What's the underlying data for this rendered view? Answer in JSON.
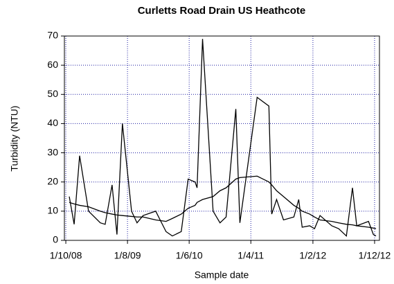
{
  "chart_data": {
    "type": "line",
    "title": "Curletts Road Drain US Heathcote",
    "xlabel": "Sample date",
    "ylabel": "Turbidity (NTU)",
    "x": [
      "2008-10-18",
      "2008-11-11",
      "2008-12-08",
      "2009-01-21",
      "2009-03-20",
      "2009-04-13",
      "2009-05-17",
      "2009-06-10",
      "2009-07-07",
      "2009-08-21",
      "2009-09-17",
      "2009-10-17",
      "2009-12-18",
      "2010-02-07",
      "2010-03-10",
      "2010-04-23",
      "2010-05-27",
      "2010-06-30",
      "2010-07-10",
      "2010-08-06",
      "2010-09-27",
      "2010-10-31",
      "2010-11-30",
      "2011-01-17",
      "2011-02-06",
      "2011-05-02",
      "2011-06-29",
      "2011-07-13",
      "2011-08-06",
      "2011-09-09",
      "2011-10-30",
      "2011-11-23",
      "2011-12-10",
      "2012-01-16",
      "2012-02-09",
      "2012-03-07",
      "2012-05-04",
      "2012-06-07",
      "2012-07-15",
      "2012-08-14",
      "2012-09-04",
      "2012-11-01",
      "2012-11-25",
      "2012-12-08"
    ],
    "series": [
      {
        "color": "#000000",
        "values": [
          15,
          5.5,
          29,
          10,
          6,
          5.5,
          19,
          2,
          40,
          10,
          6,
          8.5,
          10,
          3,
          1.5,
          3,
          21,
          20,
          18,
          69,
          10,
          6,
          8,
          45,
          6,
          49,
          46,
          9,
          14,
          7,
          8,
          14,
          4.5,
          5,
          4,
          8.5,
          5,
          4,
          1.5,
          18,
          5,
          6.5,
          2,
          1.5
        ]
      },
      {
        "color": "#000000",
        "values": [
          13,
          12.5,
          12,
          11.5,
          10,
          9.5,
          9,
          8.7,
          8.5,
          8.2,
          8,
          8,
          7,
          6.5,
          7.5,
          9,
          11,
          12,
          13,
          14,
          15,
          17,
          18,
          21,
          21.5,
          22,
          20,
          19,
          17,
          15,
          12,
          11,
          10,
          9,
          8,
          7,
          6.5,
          6,
          5.5,
          5.3,
          5,
          4.5,
          4.2,
          4
        ]
      }
    ],
    "xlim": [
      "2008-09-24",
      "2012-12-25"
    ],
    "xticks": [
      {
        "value": "2008-10-01",
        "label": "1/10/08"
      },
      {
        "value": "2009-08-01",
        "label": "1/8/09"
      },
      {
        "value": "2010-06-01",
        "label": "1/6/10"
      },
      {
        "value": "2011-04-01",
        "label": "1/4/11"
      },
      {
        "value": "2012-02-01",
        "label": "1/2/12"
      },
      {
        "value": "2012-12-01",
        "label": "1/12/12"
      }
    ],
    "ylim": [
      0,
      70
    ],
    "yticks": [
      0,
      10,
      20,
      30,
      40,
      50,
      60,
      70
    ],
    "grid": true,
    "grid_color": "#1a1aa0"
  }
}
